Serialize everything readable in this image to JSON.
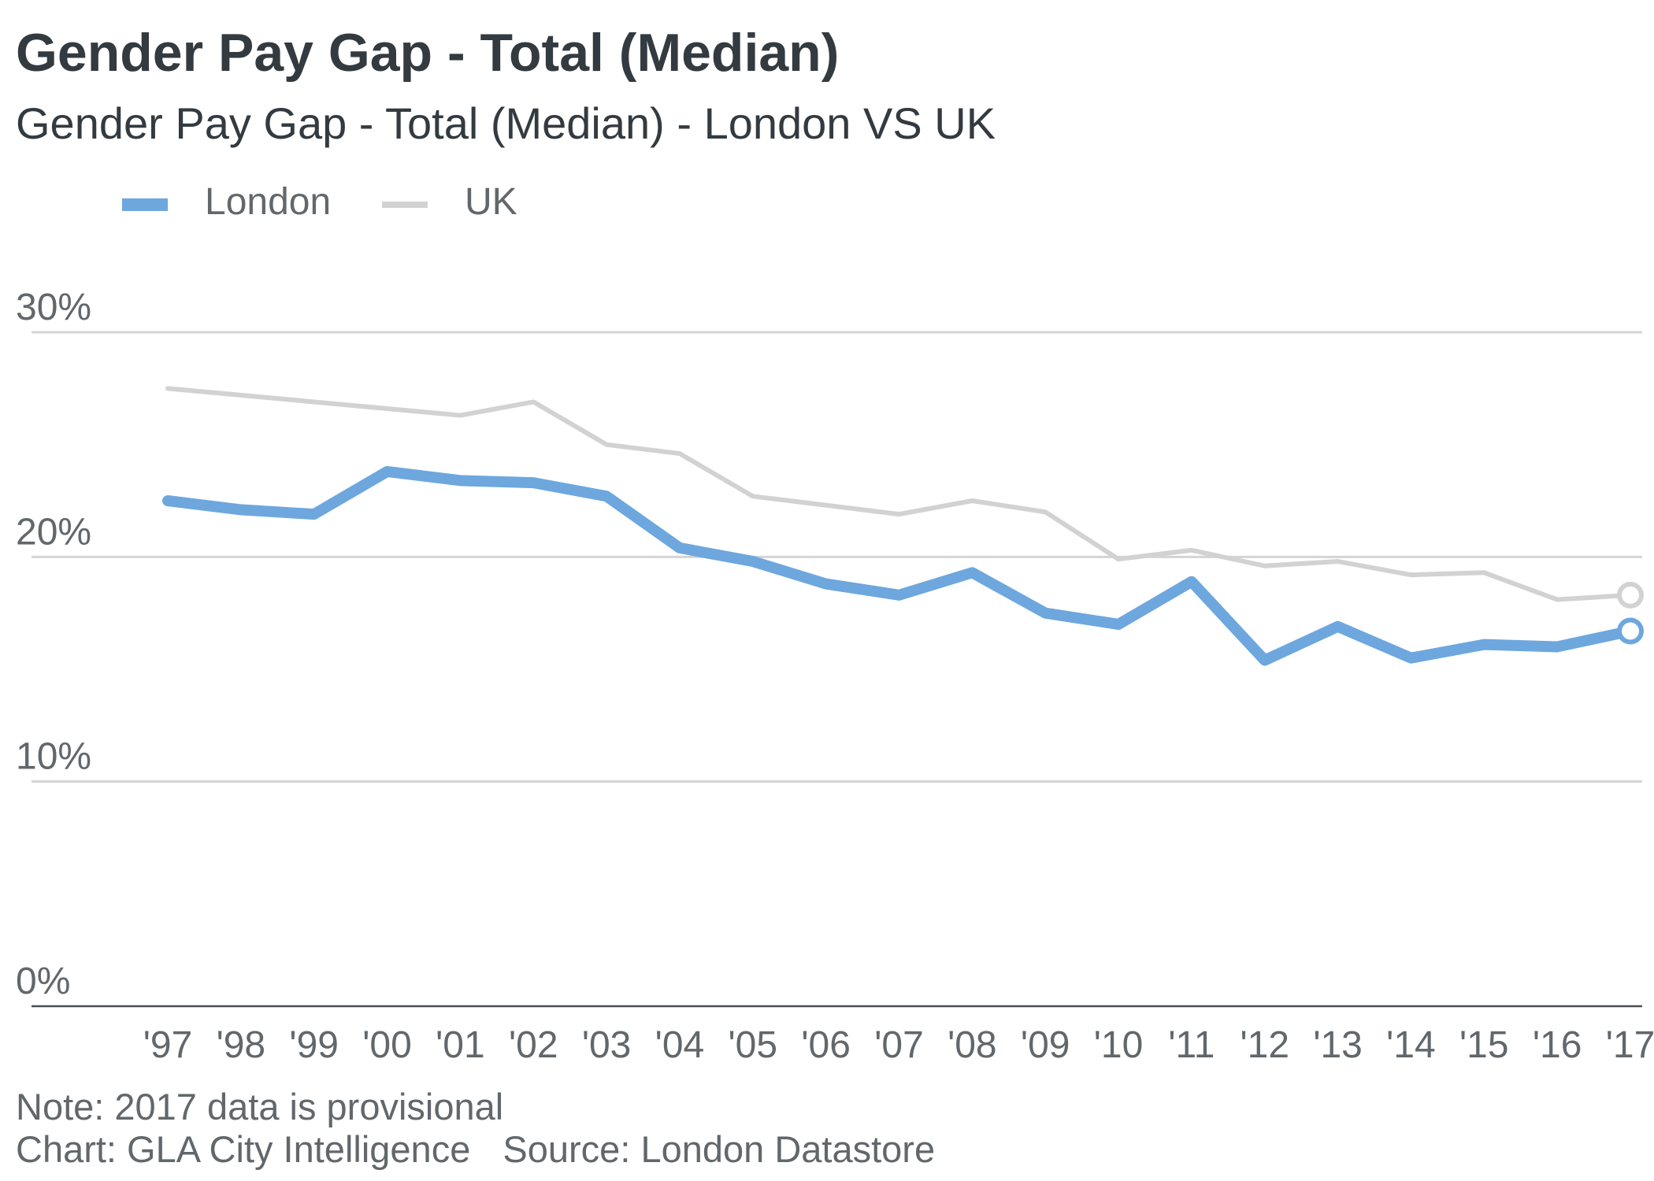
{
  "header": {
    "title": "Gender Pay Gap - Total (Median)",
    "subtitle": "Gender Pay Gap - Total (Median) - London VS UK"
  },
  "legend": [
    {
      "label": "London",
      "color": "#6da7de"
    },
    {
      "label": "UK",
      "color": "#d2d2d2"
    }
  ],
  "chart_data": {
    "type": "line",
    "title": "Gender Pay Gap - Total (Median)",
    "subtitle": "Gender Pay Gap - Total (Median) - London VS UK",
    "xlabel": "",
    "ylabel": "",
    "categories": [
      "'97",
      "'98",
      "'99",
      "'00",
      "'01",
      "'02",
      "'03",
      "'04",
      "'05",
      "'06",
      "'07",
      "'08",
      "'09",
      "'10",
      "'11",
      "'12",
      "'13",
      "'14",
      "'15",
      "'16",
      "'17"
    ],
    "series": [
      {
        "name": "London",
        "color": "#6da7de",
        "values": [
          22.5,
          22.1,
          21.9,
          23.8,
          23.4,
          23.3,
          22.7,
          20.4,
          19.8,
          18.8,
          18.3,
          19.3,
          17.5,
          17.0,
          18.9,
          15.4,
          16.9,
          15.5,
          16.1,
          16.0,
          16.7
        ]
      },
      {
        "name": "UK",
        "color": "#d2d2d2",
        "values": [
          27.5,
          27.2,
          26.9,
          26.6,
          26.3,
          26.9,
          25.0,
          24.6,
          22.7,
          22.3,
          21.9,
          22.5,
          22.0,
          19.9,
          20.3,
          19.6,
          19.8,
          19.2,
          19.3,
          18.1,
          18.3
        ]
      }
    ],
    "yticks": [
      {
        "value": 0,
        "label": "0%"
      },
      {
        "value": 10,
        "label": "10%"
      },
      {
        "value": 20,
        "label": "20%"
      },
      {
        "value": 30,
        "label": "30%"
      }
    ],
    "ylim": [
      0,
      30
    ],
    "grid": true,
    "legend_position": "top-left",
    "last_point_marker": true
  },
  "footer": {
    "note": "Note: 2017 data is provisional",
    "chart_credit": "Chart: GLA City Intelligence",
    "source": "Source: London Datastore"
  }
}
